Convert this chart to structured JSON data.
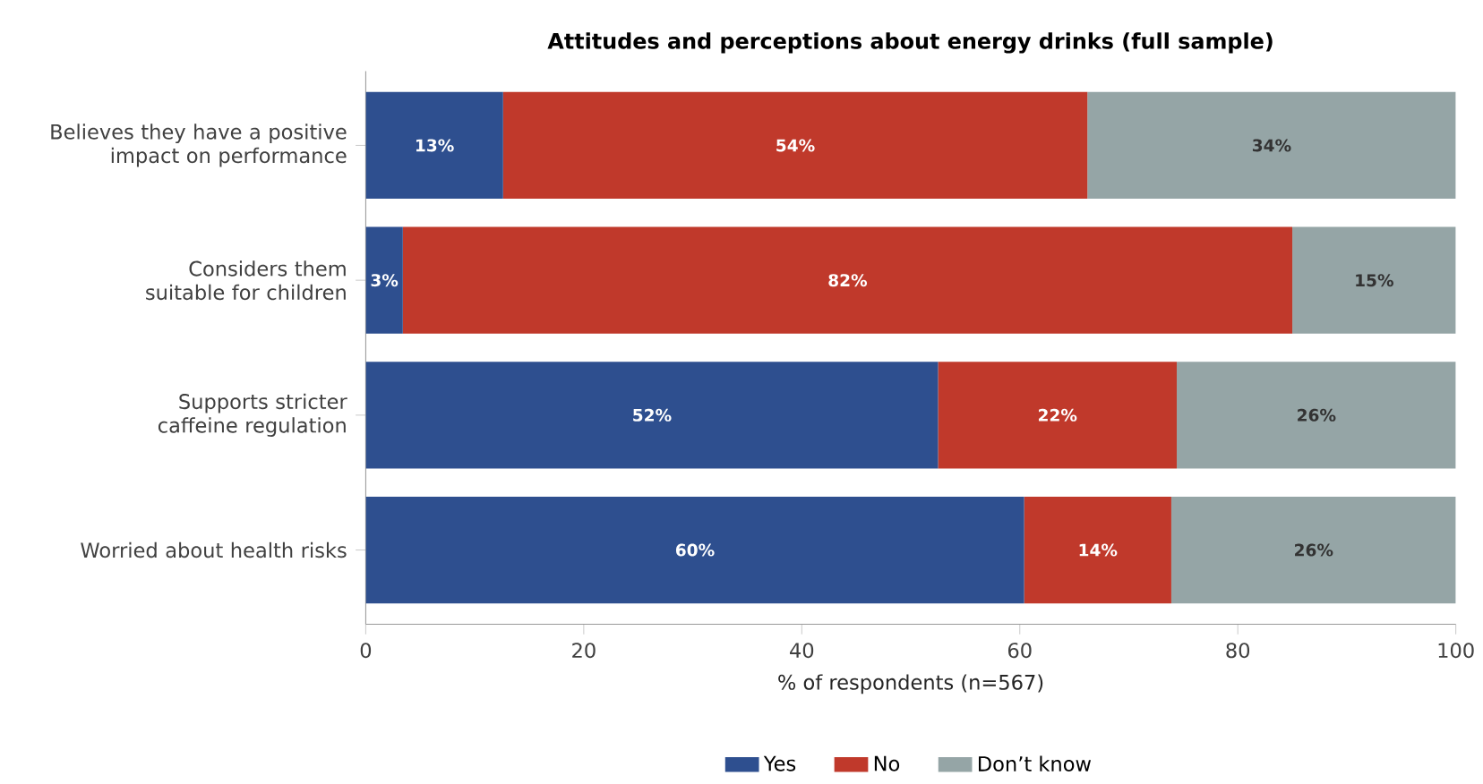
{
  "chart_data": {
    "type": "bar",
    "orientation": "horizontal",
    "stacked": true,
    "title": "Attitudes and perceptions about energy drinks (full sample)",
    "xlabel": "% of respondents (n=567)",
    "categories": [
      "Believes they have a positive impact on performance",
      "Considers them suitable for children",
      "Supports stricter caffeine regulation",
      "Worried about health risks"
    ],
    "series": [
      {
        "name": "Yes",
        "color": "#2e4f8f",
        "values": [
          12.6,
          3.4,
          52.5,
          60.4
        ],
        "value_labels": [
          "13%",
          "3%",
          "52%",
          "60%"
        ]
      },
      {
        "name": "No",
        "color": "#c0392b",
        "values": [
          53.6,
          81.6,
          21.9,
          13.5
        ],
        "value_labels": [
          "54%",
          "82%",
          "22%",
          "14%"
        ]
      },
      {
        "name": "Don’t know",
        "color": "#95a5a6",
        "values": [
          33.8,
          15.0,
          25.6,
          26.1
        ],
        "value_labels": [
          "34%",
          "15%",
          "26%",
          "26%"
        ]
      }
    ],
    "xlim": [
      0,
      100
    ],
    "xticks": [
      0,
      20,
      40,
      60,
      80,
      100
    ],
    "legend": "bottom",
    "grid": false
  }
}
